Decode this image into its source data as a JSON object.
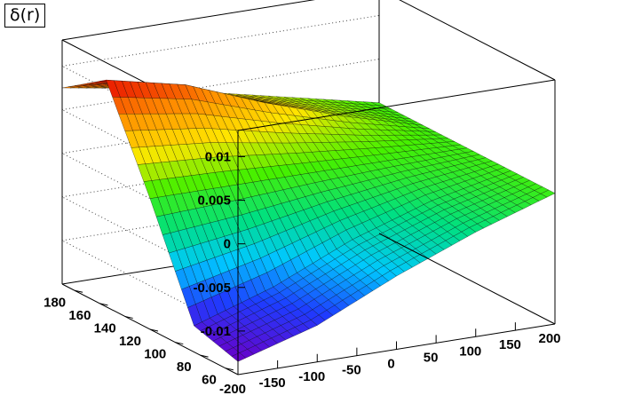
{
  "chart_data": {
    "type": "surface",
    "title": "δ(r)",
    "xlabel": "",
    "ylabel": "",
    "zlabel": "",
    "x_axis": {
      "range": [
        -200,
        200
      ],
      "ticks": [
        -200,
        -150,
        -100,
        -50,
        0,
        50,
        100,
        150,
        200
      ]
    },
    "y_axis": {
      "range": [
        50,
        190
      ],
      "ticks": [
        60,
        80,
        100,
        120,
        140,
        160,
        180
      ]
    },
    "z_axis": {
      "range": [
        -0.015,
        0.013
      ],
      "ticks": [
        -0.01,
        -0.005,
        0,
        0.005,
        0.01
      ],
      "tick_labels": [
        "-0.01",
        "-0.005",
        "0",
        "0.005",
        "0.01"
      ]
    },
    "x": [
      -200,
      -100,
      0,
      100,
      200
    ],
    "y": [
      50,
      85,
      120,
      155,
      190
    ],
    "z": [
      [
        -0.0135,
        -0.0108,
        -0.0066,
        -0.003,
        0.0
      ],
      [
        -0.012,
        -0.009,
        -0.005,
        -0.002,
        0.0
      ],
      [
        0.0,
        0.0,
        0.0,
        0.0,
        0.0
      ],
      [
        0.011,
        0.009,
        0.0055,
        0.0025,
        0.0
      ],
      [
        0.0075,
        0.006,
        0.004,
        0.002,
        0.0
      ]
    ],
    "colormap": [
      "#6a00c8",
      "#1e3cff",
      "#00c8ff",
      "#00e080",
      "#46f000",
      "#ffe600",
      "#ff8c00",
      "#e60000"
    ],
    "grid": true,
    "legend": "none"
  }
}
